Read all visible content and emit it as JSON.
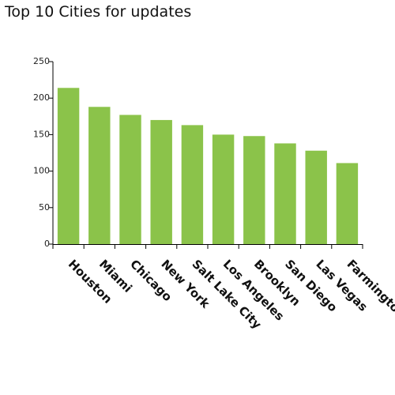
{
  "chart_data": {
    "type": "bar",
    "title": "Top 10 Cities for updates",
    "categories": [
      "Houston",
      "Miami",
      "Chicago",
      "New York",
      "Salt Lake City",
      "Los Angeles",
      "Brooklyn",
      "San Diego",
      "Las Vegas",
      "Farmington"
    ],
    "values": [
      214,
      188,
      177,
      170,
      163,
      150,
      148,
      138,
      128,
      111
    ],
    "ylim": [
      0,
      250
    ],
    "yticks": [
      0,
      50,
      100,
      150,
      200,
      250
    ],
    "xlabel": "",
    "ylabel": "",
    "grid": false,
    "bar_color": "#8bc34a",
    "axis_color": "#000000"
  }
}
